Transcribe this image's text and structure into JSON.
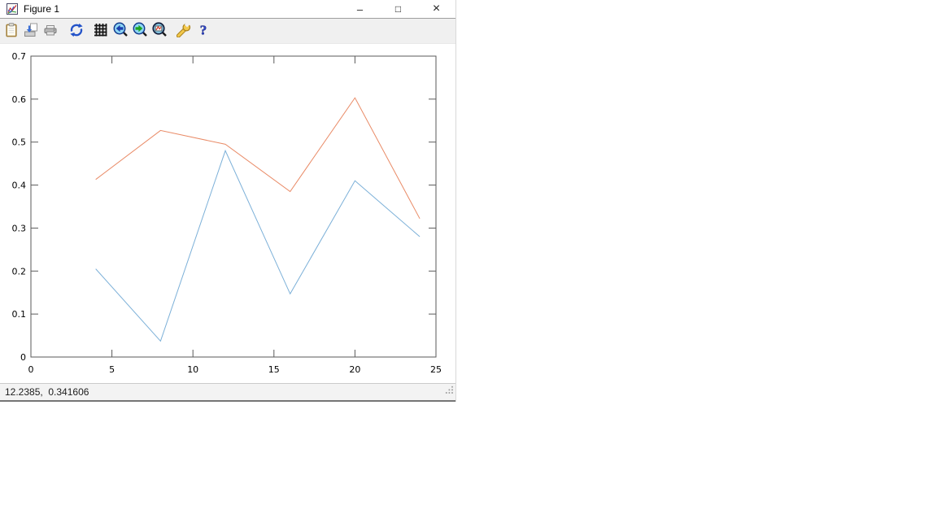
{
  "window": {
    "title": "Figure 1",
    "controls": {
      "minimize": "–",
      "maximize": "□",
      "close": "×"
    }
  },
  "toolbar": {
    "items": [
      {
        "name": "copy-to-clipboard",
        "icon": "clipboard-icon"
      },
      {
        "name": "export",
        "icon": "export-icon"
      },
      {
        "name": "print",
        "icon": "printer-icon"
      },
      {
        "name": "redraw-figure",
        "icon": "redraw-icon"
      },
      {
        "name": "toggle-grid",
        "icon": "grid-icon"
      },
      {
        "name": "zoom-previous",
        "icon": "zoom-back-icon"
      },
      {
        "name": "zoom-next",
        "icon": "zoom-forward-icon"
      },
      {
        "name": "zoom-area",
        "icon": "zoom-area-icon"
      },
      {
        "name": "figure-settings",
        "icon": "wrench-icon"
      },
      {
        "name": "help",
        "icon": "help-icon"
      }
    ]
  },
  "chart_data": {
    "type": "line",
    "x": [
      4,
      8,
      12,
      16,
      20,
      24
    ],
    "series": [
      {
        "name": "lower-blue-line",
        "color": "#7cb0d8",
        "values": [
          0.205,
          0.037,
          0.48,
          0.147,
          0.41,
          0.28
        ]
      },
      {
        "name": "upper-orange-line",
        "color": "#e98b67",
        "values": [
          0.413,
          0.527,
          0.495,
          0.385,
          0.603,
          0.322
        ]
      }
    ],
    "title": "",
    "xlabel": "",
    "ylabel": "",
    "xlim": [
      0,
      25
    ],
    "ylim": [
      0,
      0.7
    ],
    "xticks": [
      0,
      5,
      10,
      15,
      20,
      25
    ],
    "yticks": [
      0,
      0.1,
      0.2,
      0.3,
      0.4,
      0.5,
      0.6,
      0.7
    ],
    "grid": false,
    "legend": "none",
    "frame_color": "#5a5a5a"
  },
  "statusbar": {
    "coordinates": "12.2385,  0.341606"
  },
  "colors": {
    "accent_blue": "#7cb0d8",
    "accent_orange": "#e98b67",
    "toolbar_bg": "#f0f0f0",
    "status_bg": "#f3f3f3"
  }
}
